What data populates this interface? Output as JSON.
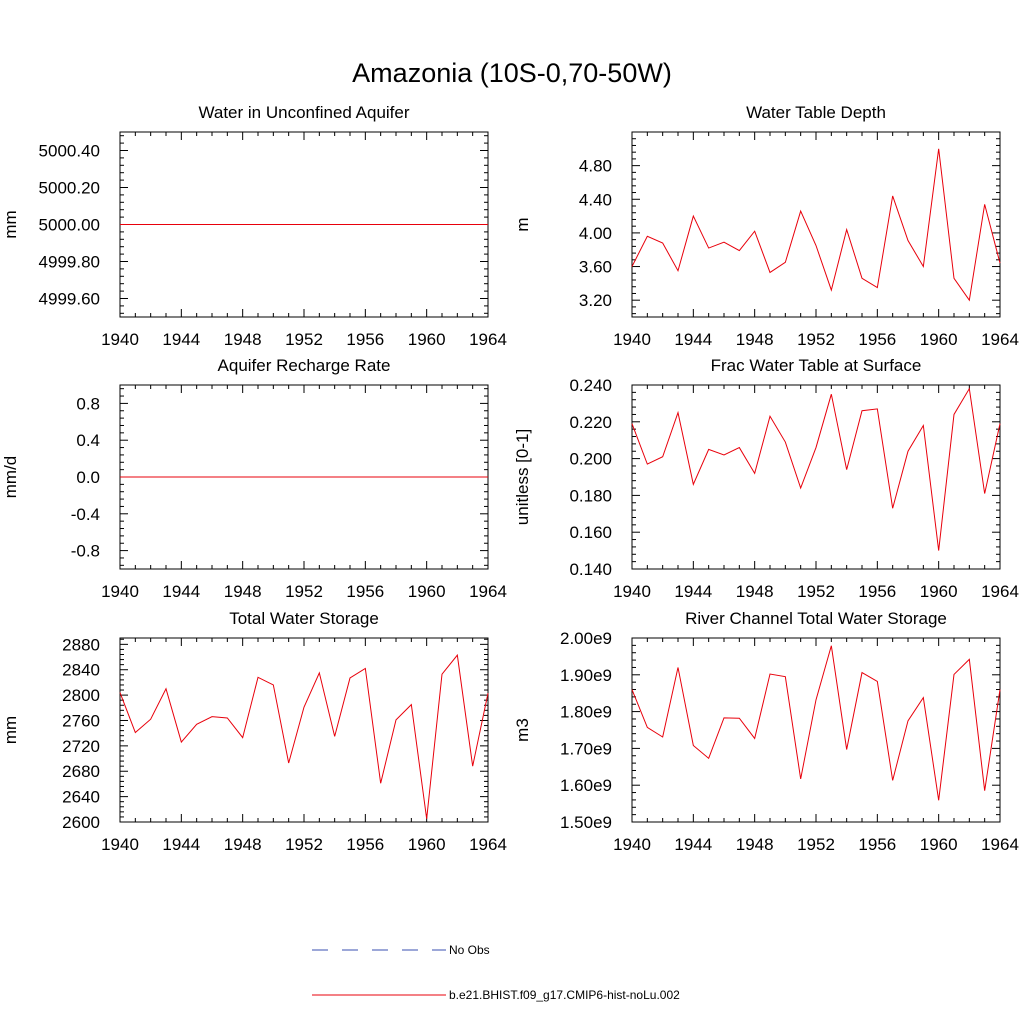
{
  "figure_title": "Amazonia (10S-0,70-50W)",
  "colors": {
    "model": "#e8000b",
    "obs": "#3a4fb0",
    "axes": "#000000"
  },
  "legend": {
    "obs_label": "No Obs",
    "model_label": "b.e21.BHIST.f09_g17.CMIP6-hist-noLu.002"
  },
  "chart_data": [
    {
      "type": "line",
      "title": "Water in Unconfined Aquifer",
      "ylabel": "mm",
      "xlim": [
        1940,
        1964
      ],
      "ylim": [
        4999.5,
        5000.5
      ],
      "xticks": [
        1940,
        1944,
        1948,
        1952,
        1956,
        1960,
        1964
      ],
      "yticks": [
        4999.6,
        4999.8,
        5000.0,
        5000.2,
        5000.4
      ],
      "ytick_labels": [
        "4999.60",
        "4999.80",
        "5000.00",
        "5000.20",
        "5000.40"
      ],
      "x": [
        1940,
        1964
      ],
      "series": [
        {
          "name": "b.e21.BHIST.f09_g17.CMIP6-hist-noLu.002",
          "values": [
            5000.0,
            5000.0
          ]
        }
      ]
    },
    {
      "type": "line",
      "title": "Water Table Depth",
      "ylabel": "m",
      "xlim": [
        1940,
        1964
      ],
      "ylim": [
        3.0,
        5.2
      ],
      "xticks": [
        1940,
        1944,
        1948,
        1952,
        1956,
        1960,
        1964
      ],
      "yticks": [
        3.2,
        3.6,
        4.0,
        4.4,
        4.8
      ],
      "ytick_labels": [
        "3.20",
        "3.60",
        "4.00",
        "4.40",
        "4.80"
      ],
      "x": [
        1940,
        1941,
        1942,
        1943,
        1944,
        1945,
        1946,
        1947,
        1948,
        1949,
        1950,
        1951,
        1952,
        1953,
        1954,
        1955,
        1956,
        1957,
        1958,
        1959,
        1960,
        1961,
        1962,
        1963,
        1964
      ],
      "series": [
        {
          "name": "b.e21.BHIST.f09_g17.CMIP6-hist-noLu.002",
          "values": [
            3.6,
            3.96,
            3.88,
            3.55,
            4.2,
            3.82,
            3.89,
            3.79,
            4.02,
            3.53,
            3.65,
            4.26,
            3.85,
            3.32,
            4.04,
            3.46,
            3.35,
            4.44,
            3.91,
            3.6,
            5.0,
            3.46,
            3.2,
            4.34,
            3.64
          ]
        }
      ]
    },
    {
      "type": "line",
      "title": "Aquifer Recharge Rate",
      "ylabel": "mm/d",
      "xlim": [
        1940,
        1964
      ],
      "ylim": [
        -1.0,
        1.0
      ],
      "xticks": [
        1940,
        1944,
        1948,
        1952,
        1956,
        1960,
        1964
      ],
      "yticks": [
        -0.8,
        -0.4,
        0.0,
        0.4,
        0.8
      ],
      "ytick_labels": [
        "-0.8",
        "-0.4",
        "0.0",
        "0.4",
        "0.8"
      ],
      "x": [
        1940,
        1964
      ],
      "series": [
        {
          "name": "b.e21.BHIST.f09_g17.CMIP6-hist-noLu.002",
          "values": [
            0.0,
            0.0
          ]
        }
      ]
    },
    {
      "type": "line",
      "title": "Frac Water Table at Surface",
      "ylabel": "unitless [0-1]",
      "xlim": [
        1940,
        1964
      ],
      "ylim": [
        0.14,
        0.24
      ],
      "xticks": [
        1940,
        1944,
        1948,
        1952,
        1956,
        1960,
        1964
      ],
      "yticks": [
        0.14,
        0.16,
        0.18,
        0.2,
        0.22,
        0.24
      ],
      "ytick_labels": [
        "0.140",
        "0.160",
        "0.180",
        "0.200",
        "0.220",
        "0.240"
      ],
      "x": [
        1940,
        1941,
        1942,
        1943,
        1944,
        1945,
        1946,
        1947,
        1948,
        1949,
        1950,
        1951,
        1952,
        1953,
        1954,
        1955,
        1956,
        1957,
        1958,
        1959,
        1960,
        1961,
        1962,
        1963,
        1964
      ],
      "series": [
        {
          "name": "b.e21.BHIST.f09_g17.CMIP6-hist-noLu.002",
          "values": [
            0.219,
            0.197,
            0.201,
            0.225,
            0.186,
            0.205,
            0.202,
            0.206,
            0.192,
            0.223,
            0.209,
            0.184,
            0.206,
            0.235,
            0.194,
            0.226,
            0.227,
            0.173,
            0.204,
            0.218,
            0.15,
            0.224,
            0.238,
            0.181,
            0.219
          ]
        }
      ]
    },
    {
      "type": "line",
      "title": "Total Water Storage",
      "ylabel": "mm",
      "xlim": [
        1940,
        1964
      ],
      "ylim": [
        2600,
        2890
      ],
      "xticks": [
        1940,
        1944,
        1948,
        1952,
        1956,
        1960,
        1964
      ],
      "yticks": [
        2600,
        2640,
        2680,
        2720,
        2760,
        2800,
        2840,
        2880
      ],
      "ytick_labels": [
        "2600",
        "2640",
        "2680",
        "2720",
        "2760",
        "2800",
        "2840",
        "2880"
      ],
      "x": [
        1940,
        1941,
        1942,
        1943,
        1944,
        1945,
        1946,
        1947,
        1948,
        1949,
        1950,
        1951,
        1952,
        1953,
        1954,
        1955,
        1956,
        1957,
        1958,
        1959,
        1960,
        1961,
        1962,
        1963,
        1964
      ],
      "series": [
        {
          "name": "b.e21.BHIST.f09_g17.CMIP6-hist-noLu.002",
          "values": [
            2804,
            2741,
            2762,
            2810,
            2726,
            2754,
            2766,
            2764,
            2733,
            2828,
            2816,
            2693,
            2781,
            2835,
            2735,
            2827,
            2842,
            2661,
            2761,
            2785,
            2605,
            2833,
            2863,
            2688,
            2803
          ]
        }
      ]
    },
    {
      "type": "line",
      "title": "River Channel Total Water Storage",
      "ylabel": "m3",
      "xlim": [
        1940,
        1964
      ],
      "ylim": [
        1.5,
        2.0
      ],
      "xticks": [
        1940,
        1944,
        1948,
        1952,
        1956,
        1960,
        1964
      ],
      "yticks": [
        1.5,
        1.6,
        1.7,
        1.8,
        1.9,
        2.0
      ],
      "ytick_labels": [
        "1.50e9",
        "1.60e9",
        "1.70e9",
        "1.80e9",
        "1.90e9",
        "2.00e9"
      ],
      "x": [
        1940,
        1941,
        1942,
        1943,
        1944,
        1945,
        1946,
        1947,
        1948,
        1949,
        1950,
        1951,
        1952,
        1953,
        1954,
        1955,
        1956,
        1957,
        1958,
        1959,
        1960,
        1961,
        1962,
        1963,
        1964
      ],
      "series": [
        {
          "name": "b.e21.BHIST.f09_g17.CMIP6-hist-noLu.002",
          "values": [
            1.86,
            1.757,
            1.731,
            1.92,
            1.708,
            1.673,
            1.783,
            1.782,
            1.727,
            1.902,
            1.895,
            1.617,
            1.832,
            1.979,
            1.697,
            1.906,
            1.882,
            1.613,
            1.775,
            1.838,
            1.559,
            1.901,
            1.942,
            1.585,
            1.86
          ]
        }
      ]
    }
  ]
}
